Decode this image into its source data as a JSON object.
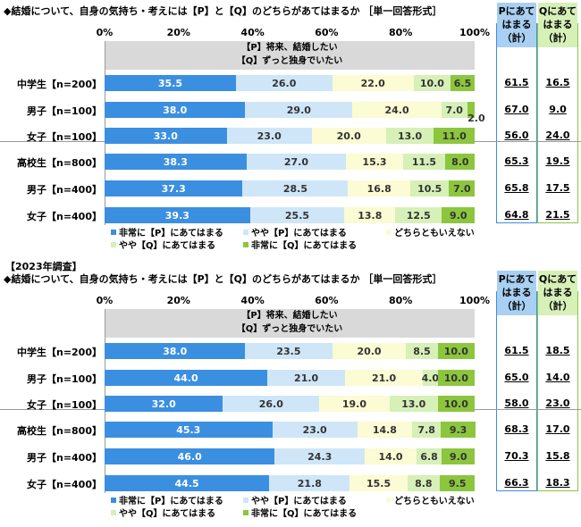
{
  "chart_data": [
    {
      "type": "bar",
      "stacked": true,
      "orientation": "horizontal",
      "title": "◆結婚について、自身の気持ち・考えには【P】と【Q】のどちらがあてはまるか ［単一回答形式］",
      "xticks": [
        "0%",
        "20%",
        "40%",
        "60%",
        "80%",
        "100%"
      ],
      "xlim": [
        0,
        100
      ],
      "header": [
        "【P】将来、結婚したい",
        "【Q】ずっと独身でいたい"
      ],
      "totals_headers": [
        "Pにあてはまる（計）",
        "Qにあてはまる（計）"
      ],
      "categories": [
        "中学生【n=200】",
        "男子【n=100】",
        "女子【n=100】",
        "高校生【n=800】",
        "男子【n=400】",
        "女子【n=400】"
      ],
      "series": [
        {
          "name": "非常に【P】にあてはまる",
          "color": "#3b8fe0",
          "values": [
            35.5,
            38.0,
            33.0,
            38.3,
            37.3,
            39.3
          ]
        },
        {
          "name": "やや【P】にあてはまる",
          "color": "#cfe6f8",
          "values": [
            26.0,
            29.0,
            23.0,
            27.0,
            28.5,
            25.5
          ]
        },
        {
          "name": "どちらともいえない",
          "color": "#fbfbd4",
          "values": [
            22.0,
            24.0,
            20.0,
            15.3,
            16.8,
            13.8
          ]
        },
        {
          "name": "やや【Q】にあてはまる",
          "color": "#d6f0b8",
          "values": [
            10.0,
            7.0,
            13.0,
            11.5,
            10.5,
            12.5
          ]
        },
        {
          "name": "非常に【Q】にあてはまる",
          "color": "#8cc63e",
          "values": [
            6.5,
            2.0,
            11.0,
            8.0,
            7.0,
            9.0
          ]
        }
      ],
      "p_total": [
        "61.5",
        "67.0",
        "56.0",
        "65.3",
        "65.8",
        "64.8"
      ],
      "q_total": [
        "16.5",
        "9.0",
        "24.0",
        "19.5",
        "17.5",
        "21.5"
      ]
    },
    {
      "type": "bar",
      "stacked": true,
      "orientation": "horizontal",
      "year_label": "【2023年調査】",
      "title": "◆結婚について、自身の気持ち・考えには【P】と【Q】のどちらがあてはまるか ［単一回答形式］",
      "xticks": [
        "0%",
        "20%",
        "40%",
        "60%",
        "80%",
        "100%"
      ],
      "xlim": [
        0,
        100
      ],
      "header": [
        "【P】将来、結婚したい",
        "【Q】ずっと独身でいたい"
      ],
      "totals_headers": [
        "Pにあてはまる（計）",
        "Qにあてはまる（計）"
      ],
      "categories": [
        "中学生【n=200】",
        "男子【n=100】",
        "女子【n=100】",
        "高校生【n=800】",
        "男子【n=400】",
        "女子【n=400】"
      ],
      "series": [
        {
          "name": "非常に【P】にあてはまる",
          "color": "#3b8fe0",
          "values": [
            38.0,
            44.0,
            32.0,
            45.3,
            46.0,
            44.5
          ]
        },
        {
          "name": "やや【P】にあてはまる",
          "color": "#cfe6f8",
          "values": [
            23.5,
            21.0,
            26.0,
            23.0,
            24.3,
            21.8
          ]
        },
        {
          "name": "どちらともいえない",
          "color": "#fbfbd4",
          "values": [
            20.0,
            21.0,
            19.0,
            14.8,
            14.0,
            15.5
          ]
        },
        {
          "name": "やや【Q】にあてはまる",
          "color": "#d6f0b8",
          "values": [
            8.5,
            4.0,
            13.0,
            7.8,
            6.8,
            8.8
          ]
        },
        {
          "name": "非常に【Q】にあてはまる",
          "color": "#8cc63e",
          "values": [
            10.0,
            10.0,
            10.0,
            9.3,
            9.0,
            9.5
          ]
        }
      ],
      "p_total": [
        "61.5",
        "65.0",
        "58.0",
        "68.3",
        "70.3",
        "66.3"
      ],
      "q_total": [
        "18.5",
        "14.0",
        "23.0",
        "17.0",
        "15.8",
        "18.3"
      ]
    }
  ]
}
